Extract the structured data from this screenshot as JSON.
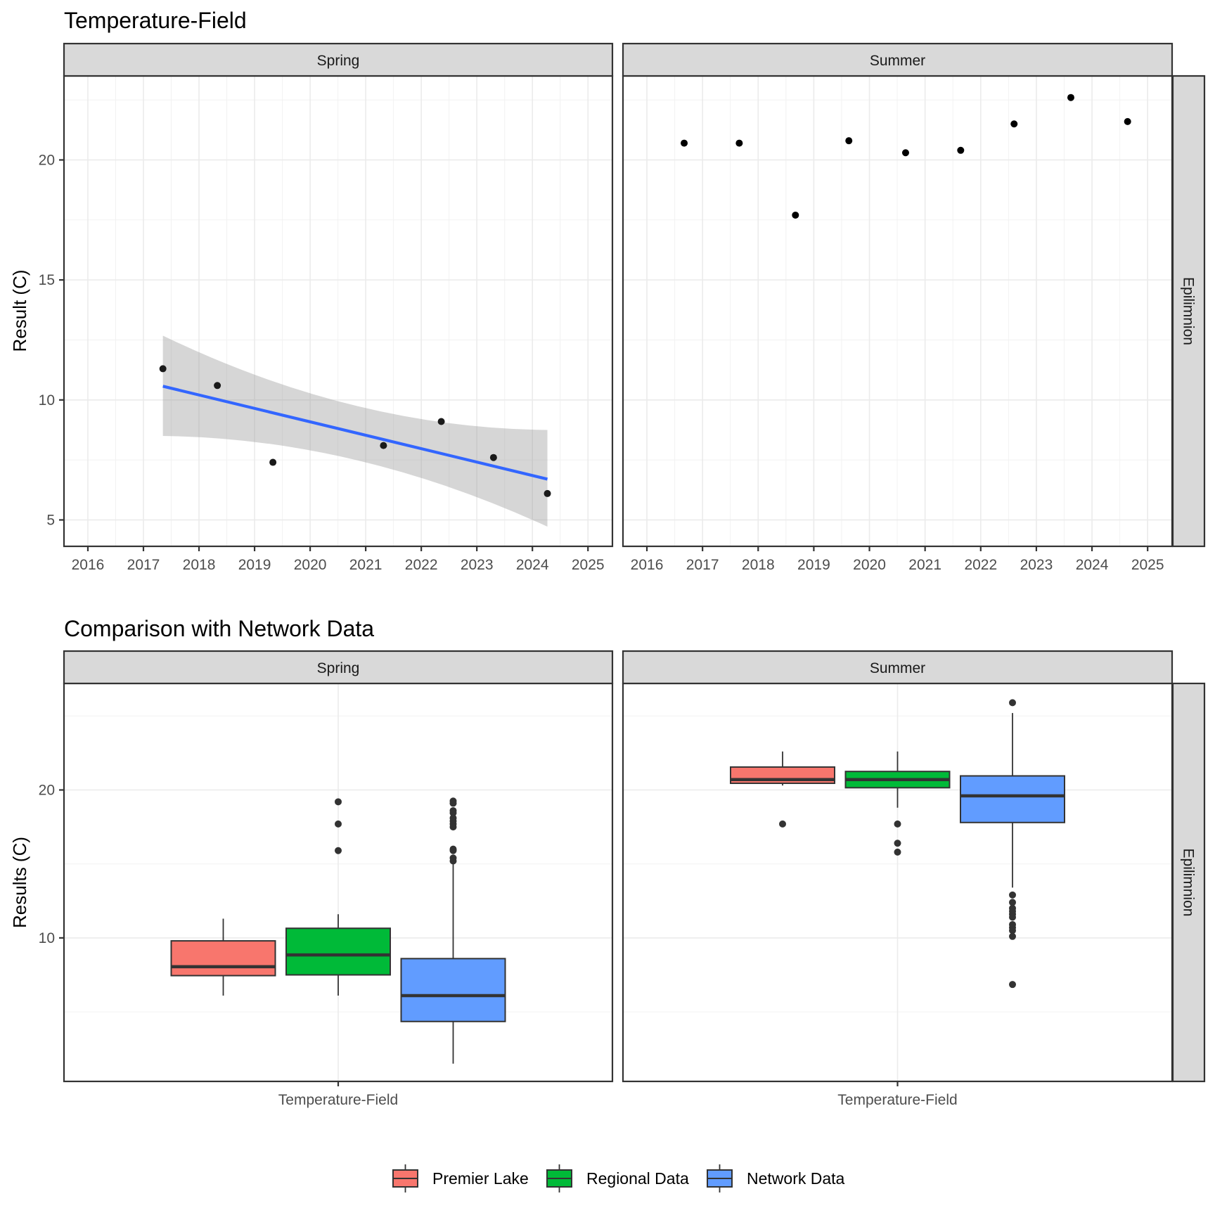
{
  "chart_data": [
    {
      "type": "scatter",
      "title": "Temperature-Field",
      "ylabel": "Result (C)",
      "xlabel": "",
      "ylim": [
        3.9,
        23.5
      ],
      "xlim": [
        2015.57,
        2025.44
      ],
      "yticks": [
        5,
        10,
        15,
        20
      ],
      "xticks": [
        2016,
        2017,
        2018,
        2019,
        2020,
        2021,
        2022,
        2023,
        2024,
        2025
      ],
      "grid": true,
      "row_strip": "Epilimnion",
      "panels": [
        {
          "strip": "Spring",
          "points": [
            {
              "x": 2017.35,
              "y": 11.3
            },
            {
              "x": 2018.33,
              "y": 10.6
            },
            {
              "x": 2019.33,
              "y": 7.4
            },
            {
              "x": 2021.32,
              "y": 8.1
            },
            {
              "x": 2022.36,
              "y": 9.1
            },
            {
              "x": 2023.3,
              "y": 7.6
            },
            {
              "x": 2024.27,
              "y": 6.1
            }
          ],
          "trend": {
            "method": "lm",
            "color": "#3366ff",
            "x": [
              2017.35,
              2024.27
            ],
            "y": [
              10.57,
              6.7
            ],
            "ci_upper": [
              12.68,
              8.75
            ],
            "ci_lower": [
              8.5,
              4.72
            ]
          }
        },
        {
          "strip": "Summer",
          "points": [
            {
              "x": 2016.67,
              "y": 20.7
            },
            {
              "x": 2017.66,
              "y": 20.7
            },
            {
              "x": 2018.67,
              "y": 17.7
            },
            {
              "x": 2019.63,
              "y": 20.8
            },
            {
              "x": 2020.65,
              "y": 20.3
            },
            {
              "x": 2021.64,
              "y": 20.4
            },
            {
              "x": 2022.6,
              "y": 21.5
            },
            {
              "x": 2023.62,
              "y": 22.6
            },
            {
              "x": 2024.64,
              "y": 21.6
            }
          ]
        }
      ]
    },
    {
      "type": "box",
      "title": "Comparison with Network Data",
      "ylabel": "Results (C)",
      "xlabel": "",
      "ylim": [
        0.3,
        27.2
      ],
      "yticks": [
        10,
        20
      ],
      "categories": [
        "Temperature-Field"
      ],
      "grid": true,
      "row_strip": "Epilimnion",
      "legend": {
        "position": "bottom",
        "entries": [
          {
            "name": "Premier Lake",
            "color": "#f8766d"
          },
          {
            "name": "Regional Data",
            "color": "#00ba38"
          },
          {
            "name": "Network Data",
            "color": "#619cff"
          }
        ]
      },
      "panels": [
        {
          "strip": "Spring",
          "series": [
            {
              "name": "Premier Lake",
              "whisker_low": 6.1,
              "q1": 7.45,
              "median": 8.05,
              "q3": 9.8,
              "whisker_high": 11.3,
              "outliers": []
            },
            {
              "name": "Regional Data",
              "whisker_low": 6.1,
              "q1": 7.5,
              "median": 8.85,
              "q3": 10.65,
              "whisker_high": 11.6,
              "outliers": [
                19.2,
                17.7,
                15.9
              ]
            },
            {
              "name": "Network Data",
              "whisker_low": 1.5,
              "q1": 4.35,
              "median": 6.1,
              "q3": 8.6,
              "whisker_high": 15.1,
              "outliers": [
                19.25,
                19.1,
                18.6,
                18.45,
                18.1,
                17.9,
                17.7,
                17.5,
                16.0,
                15.9,
                15.4,
                15.2
              ]
            }
          ]
        },
        {
          "strip": "Summer",
          "series": [
            {
              "name": "Premier Lake",
              "whisker_low": 20.3,
              "q1": 20.45,
              "median": 20.7,
              "q3": 21.55,
              "whisker_high": 22.6,
              "outliers": [
                17.7
              ]
            },
            {
              "name": "Regional Data",
              "whisker_low": 18.8,
              "q1": 20.15,
              "median": 20.7,
              "q3": 21.25,
              "whisker_high": 22.6,
              "outliers": [
                17.7,
                16.4,
                15.8
              ]
            },
            {
              "name": "Network Data",
              "whisker_low": 13.4,
              "q1": 17.8,
              "median": 19.6,
              "q3": 20.95,
              "whisker_high": 25.2,
              "outliers": [
                25.9,
                12.9,
                12.4,
                12.0,
                11.8,
                11.6,
                11.4,
                10.9,
                10.7,
                10.5,
                10.1,
                6.85
              ]
            }
          ]
        }
      ]
    }
  ]
}
